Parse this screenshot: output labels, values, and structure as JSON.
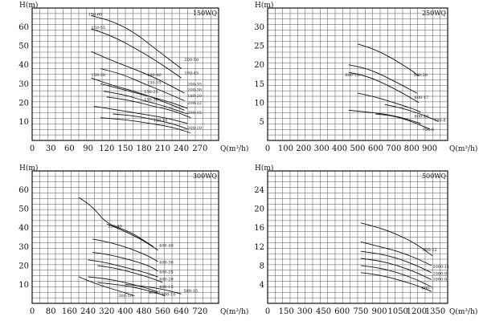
{
  "chart_data": [
    {
      "type": "line",
      "title": "150WQ",
      "xlabel": "Q(m³/h)",
      "ylabel": "H(m)",
      "xlim": [
        0,
        300
      ],
      "ylim": [
        0,
        70
      ],
      "x_ticks": [
        0,
        30,
        60,
        90,
        120,
        150,
        180,
        210,
        240,
        270
      ],
      "y_ticks": [
        10,
        20,
        30,
        40,
        50,
        60
      ],
      "x_tick_labels": [
        "0",
        "30",
        "60",
        "90",
        "120",
        "150",
        "180",
        "210",
        "240",
        "270"
      ],
      "y_tick_labels": [
        "10",
        "20",
        "30",
        "40",
        "50",
        "60"
      ],
      "grid": true,
      "series": [
        {
          "name": "150-60",
          "x": [
            95,
            130,
            165,
            200,
            240
          ],
          "y": [
            66,
            63,
            57,
            48,
            38
          ]
        },
        {
          "name": "150-55",
          "x": [
            95,
            130,
            170,
            205,
            240
          ],
          "y": [
            59,
            55,
            48,
            41,
            33
          ]
        },
        {
          "name": "",
          "x": [
            95,
            130,
            170,
            205,
            245
          ],
          "y": [
            47,
            42,
            37,
            32,
            25
          ]
        },
        {
          "name": "180-40",
          "x": [
            110,
            145,
            180,
            210,
            245
          ],
          "y": [
            38,
            35,
            30,
            26,
            21
          ]
        },
        {
          "name": "150-35",
          "x": [
            95,
            130,
            165,
            200,
            245
          ],
          "y": [
            33,
            29,
            26,
            22,
            16
          ]
        },
        {
          "name": "150-30",
          "x": [
            110,
            145,
            180,
            215,
            250
          ],
          "y": [
            30,
            27,
            24,
            21,
            17
          ]
        },
        {
          "name": "150-25",
          "x": [
            115,
            150,
            180,
            215,
            250
          ],
          "y": [
            26,
            24,
            21,
            18,
            14
          ]
        },
        {
          "name": "200-22",
          "x": [
            120,
            160,
            195,
            225,
            255
          ],
          "y": [
            23,
            21,
            18,
            16,
            12
          ]
        },
        {
          "name": "200-15",
          "x": [
            100,
            140,
            175,
            215,
            250
          ],
          "y": [
            18,
            16,
            14,
            12,
            9
          ]
        },
        {
          "name": "150-10",
          "x": [
            130,
            165,
            195,
            225,
            250
          ],
          "y": [
            14,
            13,
            11,
            9,
            6
          ]
        },
        {
          "name": "",
          "x": [
            110,
            150,
            190,
            225,
            255
          ],
          "y": [
            12,
            11,
            9,
            7,
            4
          ]
        }
      ],
      "labels": [
        {
          "text": "150-60",
          "x": 90,
          "y": 66
        },
        {
          "text": "150-55",
          "x": 95,
          "y": 59
        },
        {
          "text": "150-30",
          "x": 95,
          "y": 34
        },
        {
          "text": "200-50",
          "x": 245,
          "y": 42
        },
        {
          "text": "180-40",
          "x": 185,
          "y": 34
        },
        {
          "text": "180-45",
          "x": 245,
          "y": 35
        },
        {
          "text": "200-35",
          "x": 250,
          "y": 29
        },
        {
          "text": "150-35",
          "x": 185,
          "y": 30
        },
        {
          "text": "150-25",
          "x": 180,
          "y": 25
        },
        {
          "text": "200-30",
          "x": 250,
          "y": 26
        },
        {
          "text": "180-20",
          "x": 250,
          "y": 23
        },
        {
          "text": "200-22",
          "x": 250,
          "y": 19
        },
        {
          "text": "150-30",
          "x": 180,
          "y": 21
        },
        {
          "text": "200-15",
          "x": 250,
          "y": 14
        },
        {
          "text": "150-10",
          "x": 195,
          "y": 10
        },
        {
          "text": "200-10",
          "x": 250,
          "y": 6
        }
      ]
    },
    {
      "type": "line",
      "title": "250WQ",
      "xlabel": "Q(m³/h)",
      "ylabel": "H(m)",
      "xlim": [
        0,
        1000
      ],
      "ylim": [
        0,
        35
      ],
      "x_ticks": [
        0,
        100,
        200,
        300,
        400,
        500,
        600,
        700,
        800,
        900
      ],
      "y_ticks": [
        5,
        10,
        15,
        20,
        25,
        30
      ],
      "x_tick_labels": [
        "0",
        "100",
        "200",
        "300",
        "400",
        "500",
        "600",
        "700",
        "800",
        "900"
      ],
      "y_tick_labels": [
        "5",
        "10",
        "15",
        "20",
        "25",
        "30"
      ],
      "grid": true,
      "series": [
        {
          "name": "",
          "x": [
            500,
            600,
            700,
            800,
            840
          ],
          "y": [
            25.5,
            24,
            21.5,
            18.5,
            17
          ]
        },
        {
          "name": "600-15",
          "x": [
            450,
            550,
            650,
            750,
            830
          ],
          "y": [
            20,
            19,
            17,
            14.5,
            12.5
          ]
        },
        {
          "name": "",
          "x": [
            450,
            550,
            650,
            750,
            840
          ],
          "y": [
            18,
            17,
            15,
            12.5,
            10
          ]
        },
        {
          "name": "",
          "x": [
            500,
            600,
            700,
            800,
            850
          ],
          "y": [
            12.5,
            11.5,
            10,
            8.5,
            7.5
          ]
        },
        {
          "name": "",
          "x": [
            450,
            550,
            650,
            750,
            850
          ],
          "y": [
            8,
            7.5,
            7,
            6,
            4.5
          ]
        },
        {
          "name": "",
          "x": [
            650,
            750,
            850,
            950
          ],
          "y": [
            9.5,
            8.5,
            7,
            5
          ]
        },
        {
          "name": "",
          "x": [
            600,
            700,
            800,
            900
          ],
          "y": [
            7,
            6.5,
            5,
            3
          ]
        }
      ],
      "labels": [
        {
          "text": "600-15",
          "x": 430,
          "y": 17
        },
        {
          "text": "500-20",
          "x": 810,
          "y": 17
        },
        {
          "text": "600-17",
          "x": 815,
          "y": 11
        },
        {
          "text": "600-10",
          "x": 815,
          "y": 6
        },
        {
          "text": "750-8",
          "x": 925,
          "y": 5
        },
        {
          "text": "750-6",
          "x": 860,
          "y": 2.5
        }
      ]
    },
    {
      "type": "line",
      "title": "300WQ",
      "xlabel": "Q(m³/h)",
      "ylabel": "H(m)",
      "xlim": [
        0,
        800
      ],
      "ylim": [
        0,
        70
      ],
      "x_ticks": [
        0,
        80,
        160,
        240,
        320,
        400,
        480,
        560,
        640,
        720
      ],
      "y_ticks": [
        10,
        20,
        30,
        40,
        50,
        60
      ],
      "x_tick_labels": [
        "0",
        "80",
        "160",
        "240",
        "320",
        "400",
        "480",
        "560",
        "640",
        "720"
      ],
      "y_tick_labels": [
        "10",
        "20",
        "30",
        "40",
        "50",
        "60"
      ],
      "grid": true,
      "series": [
        {
          "name": "",
          "x": [
            200,
            260,
            320,
            420,
            520
          ],
          "y": [
            56,
            51,
            42,
            38,
            30
          ]
        },
        {
          "name": "",
          "x": [
            320,
            400,
            480,
            540
          ],
          "y": [
            42,
            38,
            33,
            28
          ]
        },
        {
          "name": "",
          "x": [
            260,
            340,
            420,
            500,
            540
          ],
          "y": [
            34,
            32,
            29,
            25,
            22
          ]
        },
        {
          "name": "",
          "x": [
            260,
            340,
            420,
            500,
            540
          ],
          "y": [
            27,
            25.5,
            23,
            20,
            17
          ]
        },
        {
          "name": "",
          "x": [
            240,
            320,
            400,
            480,
            540
          ],
          "y": [
            23,
            21.5,
            19,
            16.5,
            14
          ]
        },
        {
          "name": "",
          "x": [
            280,
            360,
            440,
            520,
            560
          ],
          "y": [
            20,
            18.5,
            16,
            13,
            11
          ]
        },
        {
          "name": "",
          "x": [
            240,
            320,
            400,
            480,
            540
          ],
          "y": [
            14,
            13,
            11,
            8.5,
            6
          ]
        },
        {
          "name": "",
          "x": [
            280,
            360,
            440,
            520,
            570
          ],
          "y": [
            11,
            10,
            8.5,
            6,
            4
          ]
        },
        {
          "name": "",
          "x": [
            200,
            280,
            360,
            440
          ],
          "y": [
            14,
            10,
            7,
            4
          ]
        },
        {
          "name": "",
          "x": [
            400,
            480,
            560,
            640
          ],
          "y": [
            10,
            9,
            7.5,
            5
          ]
        }
      ],
      "labels": [
        {
          "text": "250-40",
          "x": 325,
          "y": 40
        },
        {
          "text": "400-40",
          "x": 545,
          "y": 30
        },
        {
          "text": "400-30",
          "x": 545,
          "y": 21
        },
        {
          "text": "400-25",
          "x": 545,
          "y": 16
        },
        {
          "text": "400-20",
          "x": 545,
          "y": 12
        },
        {
          "text": "400-15",
          "x": 545,
          "y": 8
        },
        {
          "text": "500-15",
          "x": 650,
          "y": 6
        },
        {
          "text": "400-10",
          "x": 555,
          "y": 4
        },
        {
          "text": "300-10",
          "x": 370,
          "y": 3.5
        },
        {
          "text": "400-7",
          "x": 500,
          "y": 5
        }
      ]
    },
    {
      "type": "line",
      "title": "500WQ",
      "xlabel": "Q(m³/h)",
      "ylabel": "H(m)",
      "xlim": [
        0,
        1450
      ],
      "ylim": [
        0,
        28
      ],
      "x_ticks": [
        0,
        150,
        300,
        450,
        600,
        750,
        900,
        1050,
        1200,
        1350
      ],
      "y_ticks": [
        4,
        8,
        12,
        16,
        20,
        24
      ],
      "x_tick_labels": [
        "0",
        "150",
        "300",
        "450",
        "600",
        "750",
        "900",
        "1050",
        "1200",
        "1350"
      ],
      "y_tick_labels": [
        "4",
        "8",
        "12",
        "16",
        "20",
        "24"
      ],
      "grid": true,
      "series": [
        {
          "name": "",
          "x": [
            750,
            900,
            1050,
            1200,
            1330
          ],
          "y": [
            17,
            16,
            14.5,
            12.5,
            10
          ]
        },
        {
          "name": "",
          "x": [
            750,
            900,
            1050,
            1200,
            1320
          ],
          "y": [
            13,
            12,
            11,
            9.5,
            8
          ]
        },
        {
          "name": "",
          "x": [
            750,
            900,
            1050,
            1200,
            1320
          ],
          "y": [
            11,
            10.5,
            9.5,
            8,
            6.5
          ]
        },
        {
          "name": "",
          "x": [
            750,
            900,
            1050,
            1200,
            1320
          ],
          "y": [
            9.5,
            9,
            8,
            6.5,
            5
          ]
        },
        {
          "name": "",
          "x": [
            750,
            900,
            1050,
            1200,
            1320
          ],
          "y": [
            8,
            7.5,
            6.5,
            5,
            3.5
          ]
        },
        {
          "name": "",
          "x": [
            750,
            900,
            1050,
            1200,
            1320
          ],
          "y": [
            6.5,
            6,
            5,
            3.8,
            2.5
          ]
        }
      ],
      "labels": [
        {
          "text": "800-12",
          "x": 1250,
          "y": 11
        },
        {
          "text": "1000-11",
          "x": 1330,
          "y": 7.5
        },
        {
          "text": "1000-9",
          "x": 1330,
          "y": 6
        },
        {
          "text": "1000-8",
          "x": 1330,
          "y": 4.8
        },
        {
          "text": "800-7",
          "x": 1240,
          "y": 3
        }
      ]
    }
  ]
}
